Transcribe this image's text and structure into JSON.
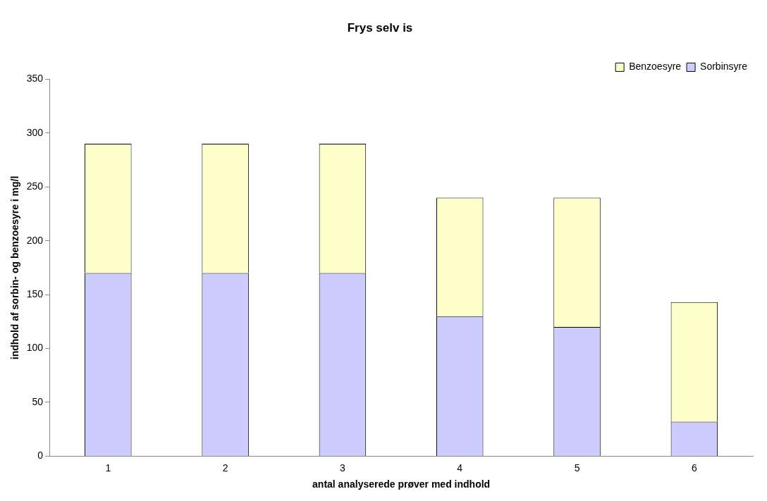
{
  "chart_data": {
    "type": "bar",
    "title": "Frys selv is",
    "xlabel": "antal analyserede prøver med indhold",
    "ylabel": "indhold af sorbin- og benzoesyre i mg/l",
    "categories": [
      "1",
      "2",
      "3",
      "4",
      "5",
      "6"
    ],
    "series": [
      {
        "name": "Sorbinsyre",
        "color": "#ccccff",
        "values": [
          170,
          170,
          170,
          130,
          120,
          32
        ]
      },
      {
        "name": "Benzoesyre",
        "color": "#ffffcc",
        "values": [
          120,
          120,
          120,
          110,
          120,
          111
        ]
      }
    ],
    "stacked": true,
    "ylim": [
      0,
      350
    ],
    "yticks": [
      0,
      50,
      100,
      150,
      200,
      250,
      300,
      350
    ],
    "grid": false,
    "legend": "top right"
  }
}
